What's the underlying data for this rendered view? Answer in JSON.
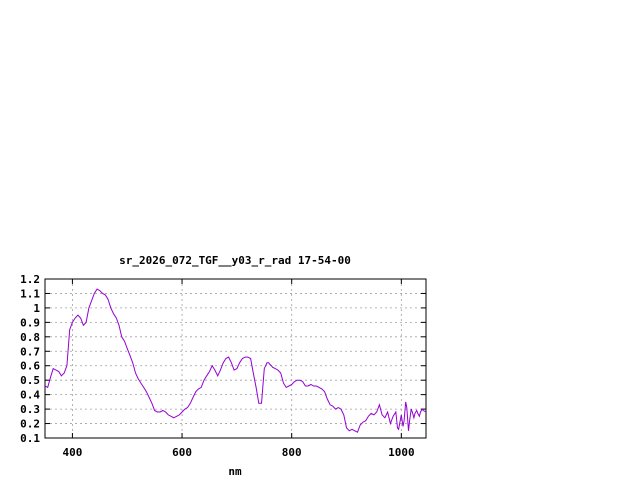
{
  "chart_data": {
    "type": "line",
    "title": "sr_2026_072_TGF__y03_r_rad 17-54-00",
    "xlabel": "nm",
    "ylabel": "",
    "xlim": [
      350,
      1045
    ],
    "ylim": [
      0.1,
      1.2
    ],
    "xticks": [
      400,
      600,
      800,
      1000
    ],
    "yticks": [
      0.1,
      0.2,
      0.3,
      0.4,
      0.5,
      0.6,
      0.7,
      0.8,
      0.9,
      1,
      1.1,
      1.2
    ],
    "xtick_labels": [
      "400",
      "600",
      "800",
      "1000"
    ],
    "ytick_labels": [
      "0.1",
      "0.2",
      "0.3",
      "0.4",
      "0.5",
      "0.6",
      "0.7",
      "0.8",
      "0.9",
      "1",
      "1.1",
      "1.2"
    ],
    "grid": true,
    "line_color": "#9400d3",
    "series": [
      {
        "x": [
          350,
          355,
          360,
          365,
          370,
          375,
          380,
          385,
          390,
          395,
          400,
          405,
          410,
          415,
          420,
          425,
          430,
          435,
          440,
          445,
          450,
          455,
          460,
          465,
          470,
          475,
          480,
          485,
          490,
          495,
          500,
          505,
          510,
          515,
          520,
          525,
          530,
          535,
          540,
          545,
          550,
          555,
          560,
          565,
          570,
          575,
          580,
          585,
          590,
          595,
          600,
          605,
          610,
          615,
          620,
          625,
          630,
          635,
          640,
          645,
          650,
          655,
          660,
          665,
          670,
          675,
          680,
          685,
          690,
          695,
          700,
          705,
          710,
          715,
          720,
          725,
          730,
          735,
          740,
          745,
          750,
          755,
          758,
          760,
          763,
          765,
          770,
          775,
          780,
          785,
          790,
          795,
          800,
          805,
          810,
          815,
          820,
          825,
          830,
          835,
          840,
          845,
          850,
          855,
          860,
          865,
          870,
          875,
          880,
          885,
          890,
          895,
          900,
          905,
          910,
          915,
          920,
          925,
          930,
          935,
          940,
          945,
          950,
          955,
          960,
          965,
          970,
          975,
          980,
          985,
          990,
          993,
          995,
          998,
          1000,
          1003,
          1005,
          1008,
          1010,
          1013,
          1015,
          1018,
          1020,
          1023,
          1025,
          1028,
          1030,
          1033,
          1035,
          1038,
          1040,
          1045
        ],
        "y": [
          0.46,
          0.45,
          0.52,
          0.58,
          0.57,
          0.56,
          0.53,
          0.55,
          0.6,
          0.85,
          0.9,
          0.93,
          0.95,
          0.93,
          0.88,
          0.9,
          1.0,
          1.05,
          1.1,
          1.13,
          1.12,
          1.1,
          1.09,
          1.06,
          1.0,
          0.96,
          0.93,
          0.88,
          0.8,
          0.77,
          0.72,
          0.67,
          0.62,
          0.55,
          0.51,
          0.48,
          0.45,
          0.42,
          0.38,
          0.34,
          0.29,
          0.28,
          0.28,
          0.29,
          0.28,
          0.26,
          0.25,
          0.24,
          0.25,
          0.26,
          0.28,
          0.3,
          0.31,
          0.34,
          0.38,
          0.42,
          0.44,
          0.45,
          0.5,
          0.53,
          0.56,
          0.6,
          0.57,
          0.53,
          0.57,
          0.62,
          0.65,
          0.66,
          0.62,
          0.57,
          0.58,
          0.62,
          0.65,
          0.66,
          0.66,
          0.65,
          0.55,
          0.45,
          0.34,
          0.34,
          0.58,
          0.62,
          0.62,
          0.61,
          0.6,
          0.59,
          0.58,
          0.57,
          0.55,
          0.48,
          0.45,
          0.46,
          0.47,
          0.49,
          0.5,
          0.5,
          0.49,
          0.46,
          0.46,
          0.47,
          0.46,
          0.46,
          0.45,
          0.44,
          0.42,
          0.37,
          0.33,
          0.32,
          0.3,
          0.31,
          0.3,
          0.26,
          0.17,
          0.15,
          0.16,
          0.15,
          0.14,
          0.19,
          0.21,
          0.22,
          0.25,
          0.27,
          0.26,
          0.28,
          0.33,
          0.26,
          0.24,
          0.28,
          0.2,
          0.25,
          0.28,
          0.17,
          0.16,
          0.22,
          0.26,
          0.18,
          0.22,
          0.35,
          0.31,
          0.15,
          0.22,
          0.3,
          0.28,
          0.24,
          0.27,
          0.29,
          0.27,
          0.25,
          0.28,
          0.3,
          0.29,
          0.28
        ]
      }
    ]
  }
}
